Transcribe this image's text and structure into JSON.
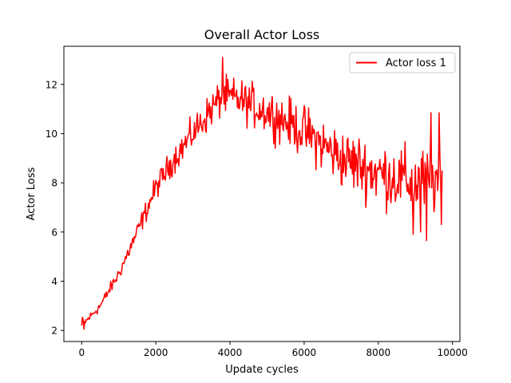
{
  "chart_data": {
    "type": "line",
    "title": "Overall Actor Loss",
    "xlabel": "Update cycles",
    "ylabel": "Actor Loss",
    "xlim": [
      -480,
      10200
    ],
    "ylim": [
      1.55,
      13.55
    ],
    "xticks": [
      0,
      2000,
      4000,
      6000,
      8000,
      10000
    ],
    "xtick_labels": [
      "0",
      "2000",
      "4000",
      "6000",
      "8000",
      "10000"
    ],
    "yticks": [
      2,
      4,
      6,
      8,
      10,
      12
    ],
    "ytick_labels": [
      "2",
      "4",
      "6",
      "8",
      "10",
      "12"
    ],
    "grid": false,
    "legend_position": "top-right",
    "series": [
      {
        "name": "Actor loss 1",
        "color": "#ff0000",
        "x_start": 0,
        "x_end": 9720,
        "sample_step": 20,
        "mean_anchors": [
          [
            0,
            3.6
          ],
          [
            15,
            2.4
          ],
          [
            100,
            2.35
          ],
          [
            500,
            3.0
          ],
          [
            1000,
            4.3
          ],
          [
            1500,
            6.0
          ],
          [
            2000,
            7.8
          ],
          [
            2500,
            9.0
          ],
          [
            3000,
            10.0
          ],
          [
            3500,
            11.0
          ],
          [
            3800,
            11.5
          ],
          [
            4200,
            11.4
          ],
          [
            5000,
            10.9
          ],
          [
            6000,
            10.1
          ],
          [
            7000,
            9.0
          ],
          [
            8000,
            8.4
          ],
          [
            9000,
            8.0
          ],
          [
            9720,
            8.1
          ]
        ],
        "spread_anchors": [
          [
            0,
            0.15
          ],
          [
            1000,
            0.25
          ],
          [
            2000,
            0.45
          ],
          [
            3000,
            0.6
          ],
          [
            4000,
            0.75
          ],
          [
            6000,
            0.95
          ],
          [
            7000,
            1.1
          ],
          [
            8000,
            1.2
          ],
          [
            9720,
            1.3
          ]
        ],
        "spikes": [
          [
            0,
            4.1
          ],
          [
            5,
            2.2
          ],
          [
            60,
            2.05
          ],
          [
            3800,
            13.1
          ],
          [
            8950,
            5.9
          ],
          [
            9150,
            6.0
          ],
          [
            9300,
            5.65
          ],
          [
            9420,
            10.85
          ],
          [
            9650,
            10.85
          ],
          [
            9700,
            6.3
          ]
        ]
      }
    ]
  }
}
